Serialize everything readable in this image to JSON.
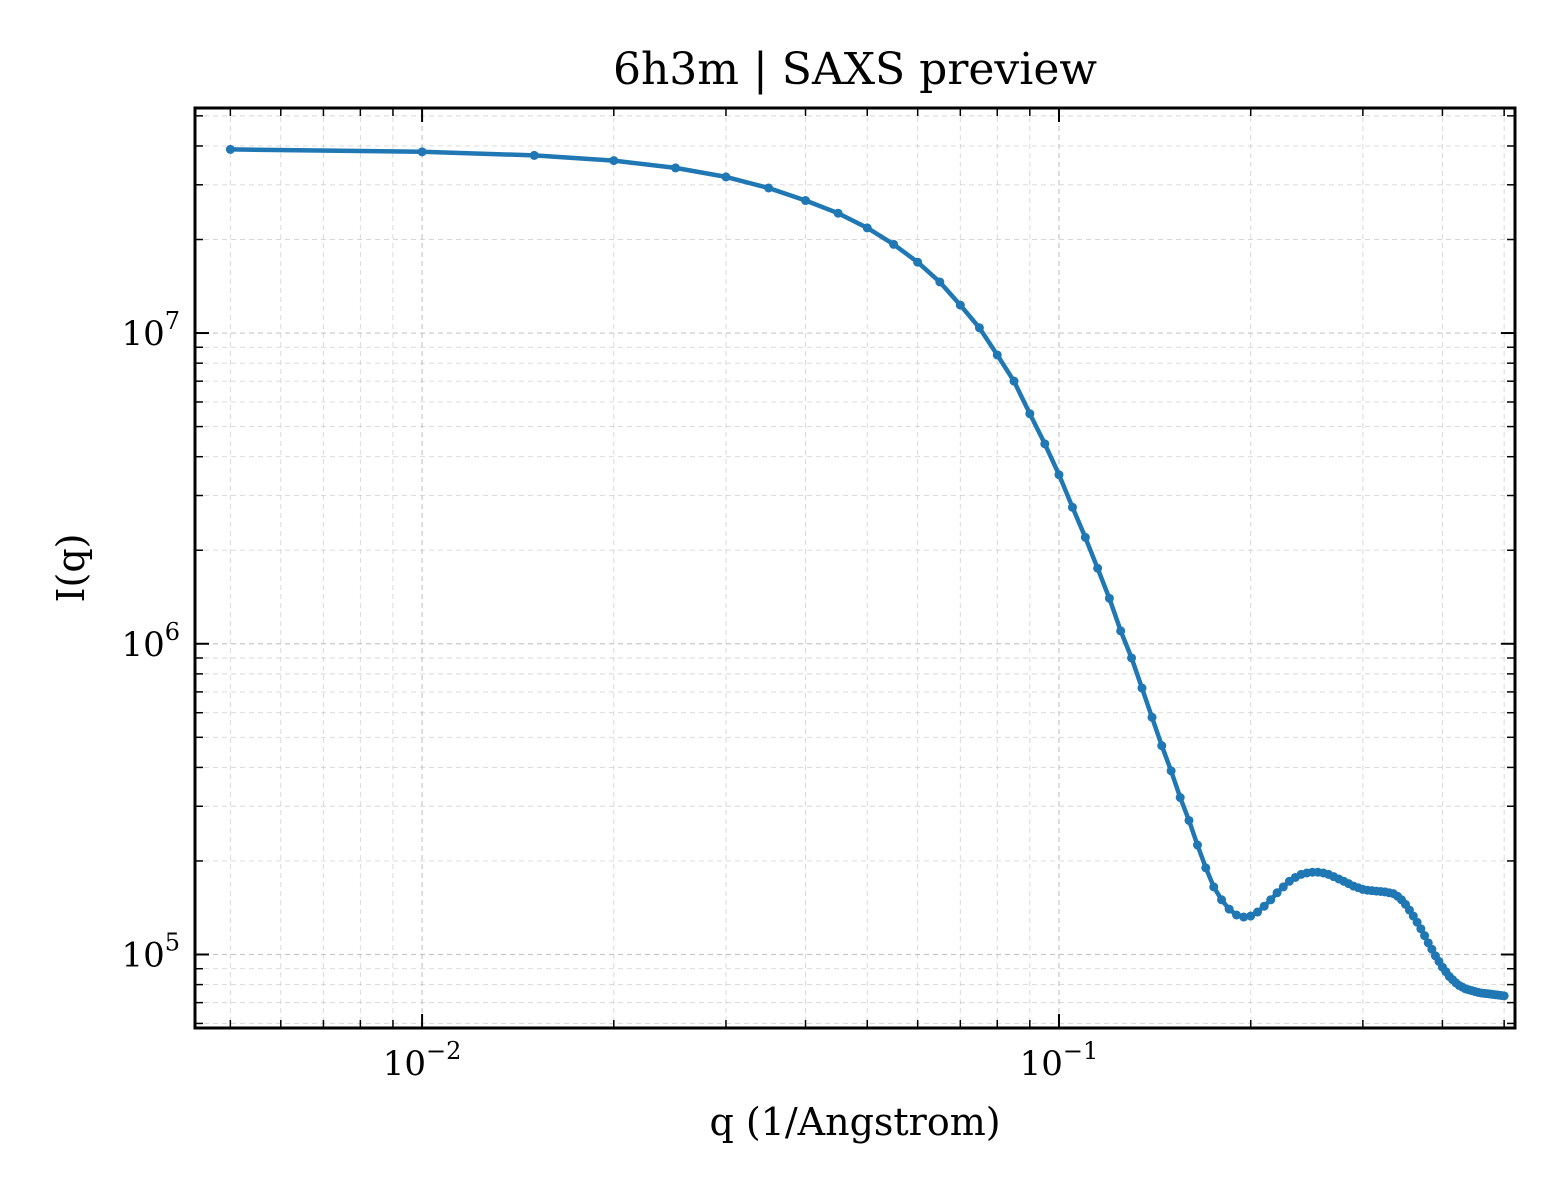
{
  "chart_data": {
    "type": "line",
    "title": "6h3m | SAXS preview",
    "xlabel": "q (1/Angstrom)",
    "ylabel": "I(q)",
    "xscale": "log",
    "yscale": "log",
    "xlim": [
      0.0044,
      0.52
    ],
    "ylim": [
      58000,
      53000000
    ],
    "grid": true,
    "legend": "none",
    "x_tick_labels": [
      {
        "base": "10",
        "exp": "−2",
        "value": 0.01
      },
      {
        "base": "10",
        "exp": "−1",
        "value": 0.1
      }
    ],
    "y_tick_labels": [
      {
        "base": "10",
        "exp": "5",
        "value": 100000
      },
      {
        "base": "10",
        "exp": "6",
        "value": 1000000
      },
      {
        "base": "10",
        "exp": "7",
        "value": 10000000
      }
    ],
    "series": [
      {
        "color": "#1f77b4",
        "x": [
          0.005,
          0.01,
          0.015,
          0.02,
          0.025,
          0.03,
          0.035,
          0.04,
          0.045,
          0.05,
          0.055,
          0.06,
          0.065,
          0.07,
          0.075,
          0.08,
          0.085,
          0.09,
          0.095,
          0.1,
          0.105,
          0.11,
          0.115,
          0.12,
          0.125,
          0.13,
          0.135,
          0.14,
          0.145,
          0.15,
          0.155,
          0.16,
          0.165,
          0.17,
          0.175,
          0.18,
          0.185,
          0.19,
          0.195,
          0.2,
          0.205,
          0.21,
          0.215,
          0.22,
          0.225,
          0.23,
          0.235,
          0.24,
          0.245,
          0.25,
          0.255,
          0.26,
          0.265,
          0.27,
          0.275,
          0.28,
          0.285,
          0.29,
          0.295,
          0.3,
          0.305,
          0.31,
          0.315,
          0.32,
          0.325,
          0.33,
          0.335,
          0.34,
          0.345,
          0.35,
          0.355,
          0.36,
          0.365,
          0.37,
          0.375,
          0.38,
          0.385,
          0.39,
          0.395,
          0.4,
          0.405,
          0.41,
          0.415,
          0.42,
          0.425,
          0.43,
          0.435,
          0.44,
          0.445,
          0.45,
          0.455,
          0.46,
          0.465,
          0.47,
          0.475,
          0.48,
          0.485,
          0.49,
          0.495,
          0.5
        ],
        "y": [
          39000000,
          38300000,
          37300000,
          35900000,
          34000000,
          31800000,
          29300000,
          26700000,
          24300000,
          21800000,
          19300000,
          16900000,
          14600000,
          12300000,
          10400000,
          8500000,
          7000000,
          5500000,
          4400000,
          3500000,
          2750000,
          2200000,
          1750000,
          1400000,
          1100000,
          900000,
          720000,
          580000,
          470000,
          390000,
          320000,
          270000,
          225000,
          190000,
          165000,
          150000,
          140000,
          134000,
          132000,
          133000,
          137000,
          143000,
          150000,
          158000,
          165000,
          172000,
          177000,
          181000,
          183000,
          184000,
          184000,
          183000,
          181000,
          178000,
          175000,
          172000,
          169000,
          166000,
          164000,
          162000,
          161000,
          160500,
          160000,
          159500,
          159000,
          158000,
          157000,
          154000,
          150000,
          145000,
          139000,
          133000,
          127000,
          121000,
          115000,
          109000,
          104000,
          99000,
          95000,
          91000,
          88000,
          85000,
          83000,
          81000,
          79500,
          78500,
          77500,
          77000,
          76500,
          76000,
          75500,
          75200,
          75000,
          74800,
          74600,
          74400,
          74200,
          74000,
          73800,
          73600
        ]
      }
    ]
  }
}
